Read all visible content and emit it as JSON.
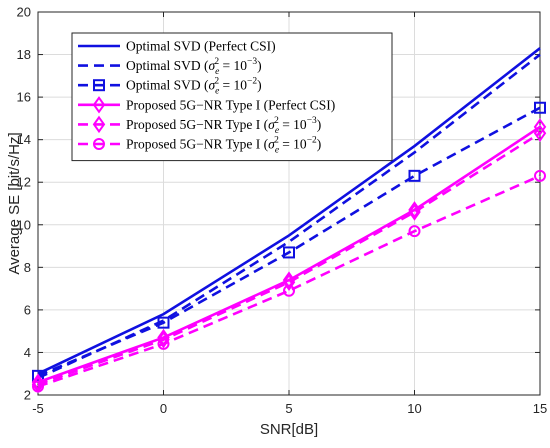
{
  "chart_data": {
    "type": "line",
    "xlabel": "SNR[dB]",
    "ylabel": "Average SE [bit/s/Hz]",
    "xlim": [
      -5,
      15
    ],
    "ylim": [
      2,
      20
    ],
    "xticks": [
      -5,
      0,
      5,
      10,
      15
    ],
    "yticks": [
      2,
      4,
      6,
      8,
      10,
      12,
      14,
      16,
      18,
      20
    ],
    "grid": true,
    "legend_position": "top-left",
    "x": [
      -5,
      0,
      5,
      10,
      15
    ],
    "series": [
      {
        "name_parts": [
          "Optimal SVD (Perfect CSI)"
        ],
        "values": [
          3.0,
          5.8,
          9.5,
          13.7,
          18.3
        ],
        "color": "#1010e0",
        "dash": "solid",
        "marker": "none"
      },
      {
        "name_parts": [
          "Optimal SVD (",
          "σ",
          "e",
          "2",
          " = 10",
          "−3",
          ")"
        ],
        "values": [
          2.8,
          5.5,
          9.2,
          13.4,
          18.0
        ],
        "color": "#1010e0",
        "dash": "dashed",
        "marker": "none"
      },
      {
        "name_parts": [
          "Optimal SVD (",
          "σ",
          "e",
          "2",
          " = 10",
          "−2",
          ")"
        ],
        "values": [
          2.9,
          5.4,
          8.7,
          12.3,
          15.5
        ],
        "color": "#1010e0",
        "dash": "dashed",
        "marker": "square"
      },
      {
        "name_parts": [
          "Proposed 5G−NR Type I (Perfect CSI)"
        ],
        "values": [
          2.6,
          4.7,
          7.4,
          10.7,
          14.6
        ],
        "color": "#ff00ff",
        "dash": "solid",
        "marker": "diamond"
      },
      {
        "name_parts": [
          "Proposed 5G−NR Type I (",
          "σ",
          "e",
          "2",
          " = 10",
          "−3",
          ")"
        ],
        "values": [
          2.5,
          4.6,
          7.3,
          10.6,
          14.3
        ],
        "color": "#ff00ff",
        "dash": "dashed",
        "marker": "diamond"
      },
      {
        "name_parts": [
          "Proposed 5G−NR Type I (",
          "σ",
          "e",
          "2",
          " = 10",
          "−2",
          ")"
        ],
        "values": [
          2.4,
          4.4,
          6.9,
          9.7,
          12.3
        ],
        "color": "#ff00ff",
        "dash": "dashed",
        "marker": "circle"
      }
    ]
  }
}
